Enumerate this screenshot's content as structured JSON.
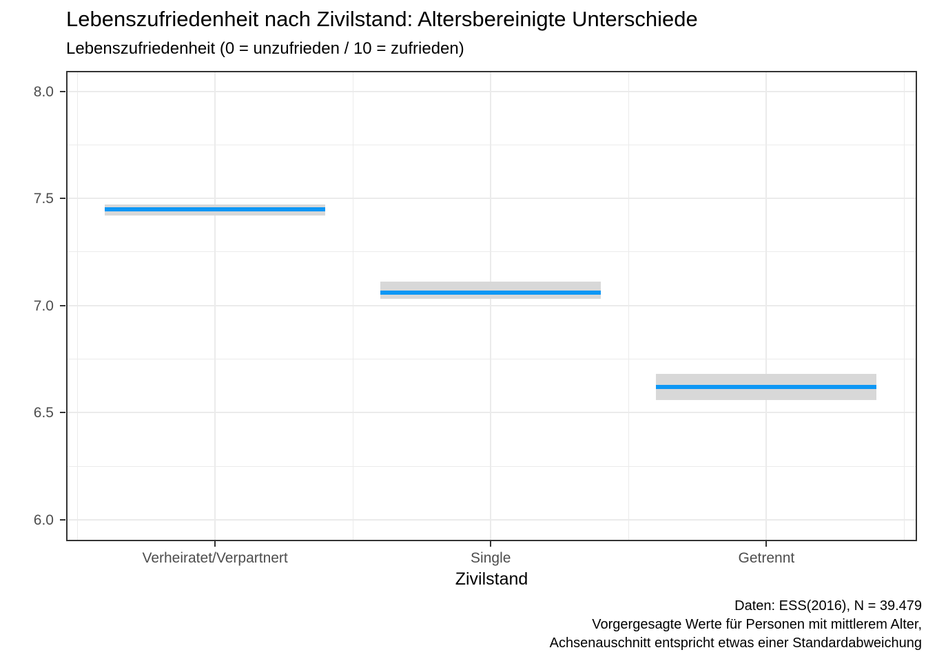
{
  "header": {
    "title": "Lebenszufriedenheit nach Zivilstand: Altersbereinigte Unterschiede",
    "subtitle": "Lebenszufriedenheit (0 = unzufrieden / 10 = zufrieden)"
  },
  "caption": {
    "line1": "Daten: ESS(2016), N = 39.479",
    "line2": "Vorgergesagte Werte für Personen mit mittlerem Alter,",
    "line3": "Achsenauschnitt entspricht etwas einer Standardabweichung"
  },
  "chart_data": {
    "type": "interval",
    "title": "Lebenszufriedenheit nach Zivilstand: Altersbereinigte Unterschiede",
    "subtitle": "Lebenszufriedenheit (0 = unzufrieden / 10 = zufrieden)",
    "xlabel": "Zivilstand",
    "ylabel": "Lebenszufriedenheit",
    "categories": [
      "Verheiratet/Verpartnert",
      "Single",
      "Getrennt"
    ],
    "series": [
      {
        "name": "Verheiratet/Verpartnert",
        "fit": 7.45,
        "ci_low": 7.42,
        "ci_high": 7.47
      },
      {
        "name": "Single",
        "fit": 7.06,
        "ci_low": 7.03,
        "ci_high": 7.11
      },
      {
        "name": "Getrennt",
        "fit": 6.62,
        "ci_low": 6.56,
        "ci_high": 6.68
      }
    ],
    "y_ticks": [
      8.0,
      7.5,
      7.0,
      6.5,
      6.0
    ],
    "y_tick_labels": [
      "8.0",
      "7.5",
      "7.0",
      "6.5",
      "6.0"
    ],
    "y_minor_ticks": [
      7.75,
      7.25,
      6.75,
      6.25
    ],
    "ylim": [
      5.9,
      8.095
    ],
    "grid": true,
    "legend": false,
    "colors": {
      "fit_line": "#0d97f5",
      "ci_band": "#d8d8d8",
      "grid": "#ebebeb",
      "panel_border": "#333333",
      "axis_text": "#4d4d4d",
      "text": "#000000"
    }
  }
}
